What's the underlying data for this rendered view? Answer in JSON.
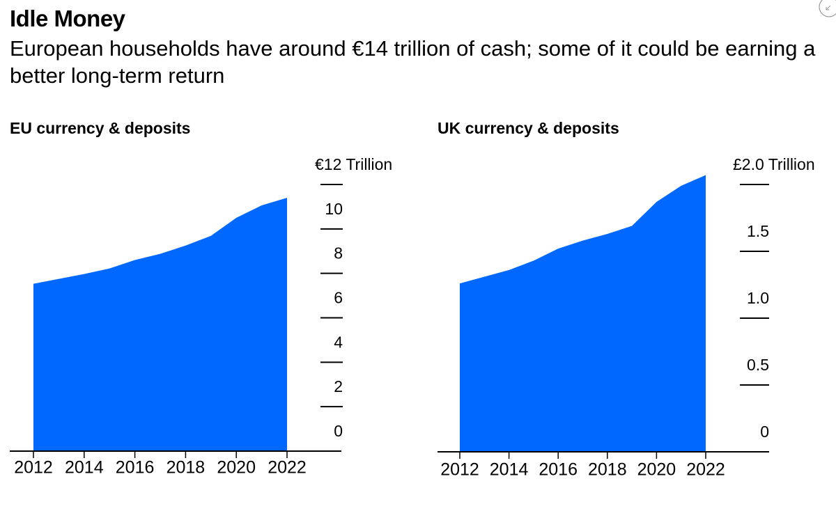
{
  "title": "Idle Money",
  "subtitle": "European households have around €14 trillion of cash; some of it could be earning a better long-term return",
  "chart_data": [
    {
      "type": "area",
      "title": "EU currency & deposits",
      "color": "#0068ff",
      "x": [
        2012,
        2013,
        2014,
        2015,
        2016,
        2017,
        2018,
        2019,
        2020,
        2021,
        2022
      ],
      "values": [
        7.53,
        7.75,
        7.97,
        8.22,
        8.6,
        8.88,
        9.25,
        9.69,
        10.5,
        11.06,
        11.4
      ],
      "xlim": [
        2012,
        2022
      ],
      "xticks": [
        2012,
        2014,
        2016,
        2018,
        2020,
        2022
      ],
      "ylim": [
        0,
        12
      ],
      "yticks": [
        0,
        2,
        4,
        6,
        8,
        10,
        {
          "value": 12,
          "label": "€12 Trillion"
        }
      ]
    },
    {
      "type": "area",
      "title": "UK currency & deposits",
      "color": "#0068ff",
      "x": [
        2012,
        2013,
        2014,
        2015,
        2016,
        2017,
        2018,
        2019,
        2020,
        2021,
        2022
      ],
      "values": [
        1.26,
        1.31,
        1.36,
        1.43,
        1.52,
        1.58,
        1.63,
        1.69,
        1.87,
        1.99,
        2.07
      ],
      "xlim": [
        2012,
        2022
      ],
      "xticks": [
        2012,
        2014,
        2016,
        2018,
        2020,
        2022
      ],
      "ylim": [
        0,
        2
      ],
      "yticks": [
        0,
        0.5,
        {
          "value": 1,
          "label": "1.0"
        },
        1.5,
        {
          "value": 2,
          "label": "£2.0 Trillion"
        }
      ]
    }
  ]
}
